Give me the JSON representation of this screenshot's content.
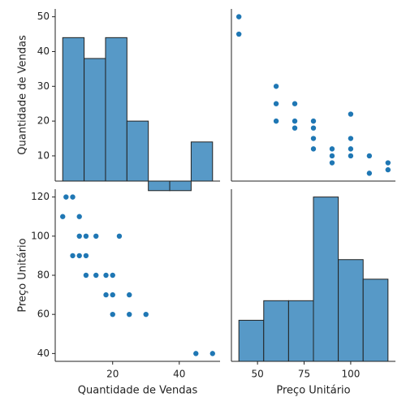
{
  "chart_data": [
    {
      "type": "histogram",
      "ylabel": "Quantidade de Vendas",
      "bins": [
        5,
        11.43,
        17.86,
        24.29,
        30.71,
        37.14,
        43.57,
        50
      ],
      "values": [
        44,
        38,
        44,
        20,
        0,
        0,
        14
      ],
      "xlim": [
        2.75,
        52.25
      ],
      "ylim": [
        2.75,
        52.25
      ],
      "yticks": [
        10,
        20,
        30,
        40,
        50
      ],
      "color": "#5799c7",
      "edgecolor": "#222222"
    },
    {
      "type": "scatter",
      "x": [
        40,
        40,
        60,
        60,
        60,
        70,
        70,
        70,
        80,
        80,
        80,
        80,
        90,
        90,
        90,
        100,
        100,
        100,
        100,
        110,
        110,
        120,
        120
      ],
      "values": [
        45,
        50,
        20,
        25,
        30,
        18,
        20,
        25,
        12,
        15,
        18,
        20,
        8,
        10,
        12,
        10,
        12,
        15,
        22,
        5,
        10,
        6,
        8
      ],
      "xlim": [
        36,
        124
      ],
      "ylim": [
        2.75,
        52.25
      ],
      "color": "#1f77b4"
    },
    {
      "type": "scatter",
      "xlabel": "Quantidade de Vendas",
      "ylabel": "Preço Unitário",
      "x": [
        45,
        50,
        20,
        25,
        30,
        18,
        20,
        25,
        12,
        15,
        18,
        20,
        8,
        10,
        12,
        10,
        12,
        15,
        22,
        5,
        10,
        6,
        8
      ],
      "values": [
        40,
        40,
        60,
        60,
        60,
        70,
        70,
        70,
        80,
        80,
        80,
        80,
        90,
        90,
        90,
        100,
        100,
        100,
        100,
        110,
        110,
        120,
        120
      ],
      "xlim": [
        2.75,
        52.25
      ],
      "ylim": [
        36,
        124
      ],
      "xticks": [
        20,
        40
      ],
      "yticks": [
        40,
        60,
        80,
        100,
        120
      ],
      "color": "#1f77b4"
    },
    {
      "type": "histogram",
      "xlabel": "Preço Unitário",
      "bins": [
        40,
        53.33,
        66.67,
        80,
        93.33,
        106.67,
        120
      ],
      "values": [
        57,
        67,
        67,
        120,
        88,
        78
      ],
      "xlim": [
        36,
        124
      ],
      "ylim": [
        36,
        124
      ],
      "xticks": [
        50,
        75,
        100
      ],
      "color": "#5799c7",
      "edgecolor": "#222222"
    }
  ]
}
